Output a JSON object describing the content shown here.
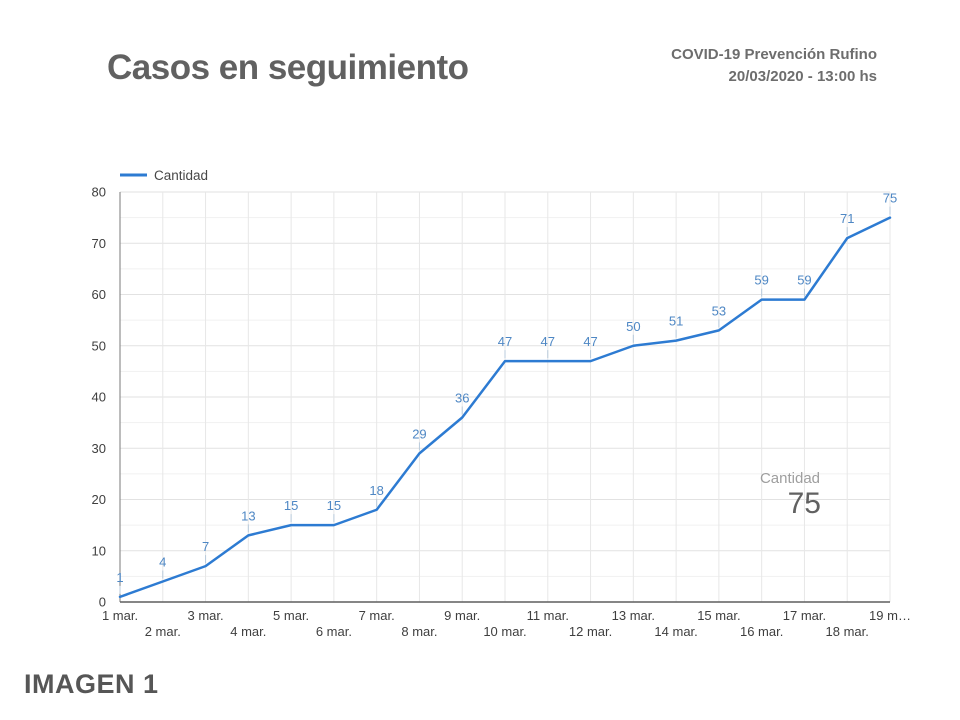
{
  "header": {
    "subtitle_line1": "COVID-19 Prevención Rufino",
    "subtitle_line2": "20/03/2020 - 13:00 hs"
  },
  "footer": {
    "caption": "IMAGEN 1"
  },
  "colors": {
    "line": "#2d7bd2",
    "point_label": "#4e87c4",
    "stem": "#b9cbdc",
    "grid_major": "#e2e2e2",
    "grid_minor": "#f1f1f1",
    "grid_vertical": "#e7e7e7",
    "axis_line": "#7a7a7a",
    "baseline": "#5f5f5f",
    "tick_label": "#3f3f3f",
    "legend_text": "#474747",
    "callout_label": "#9e9e9e",
    "callout_value": "#616161"
  },
  "chart_data": {
    "type": "line",
    "title": "Casos en seguimiento",
    "legend": {
      "position": "top-left",
      "label": "Cantidad"
    },
    "categories": [
      "1 mar.",
      "2 mar.",
      "3 mar.",
      "4 mar.",
      "5 mar.",
      "6 mar.",
      "7 mar.",
      "8 mar.",
      "9 mar.",
      "10 mar.",
      "11 mar.",
      "12 mar.",
      "13 mar.",
      "14 mar.",
      "15 mar.",
      "16 mar.",
      "17 mar.",
      "18 mar.",
      "19 m…"
    ],
    "series": [
      {
        "name": "Cantidad",
        "values": [
          1,
          4,
          7,
          13,
          15,
          15,
          18,
          29,
          36,
          47,
          47,
          47,
          50,
          51,
          53,
          59,
          59,
          71,
          75
        ]
      }
    ],
    "xlabel": "",
    "ylabel": "",
    "ylim": [
      0,
      80
    ],
    "y_ticks": [
      0,
      10,
      20,
      30,
      40,
      50,
      60,
      70,
      80
    ],
    "grid": "major-and-minor, vertical per category",
    "point_labels_visible": true,
    "callout": {
      "label": "Cantidad",
      "value": "75"
    }
  }
}
